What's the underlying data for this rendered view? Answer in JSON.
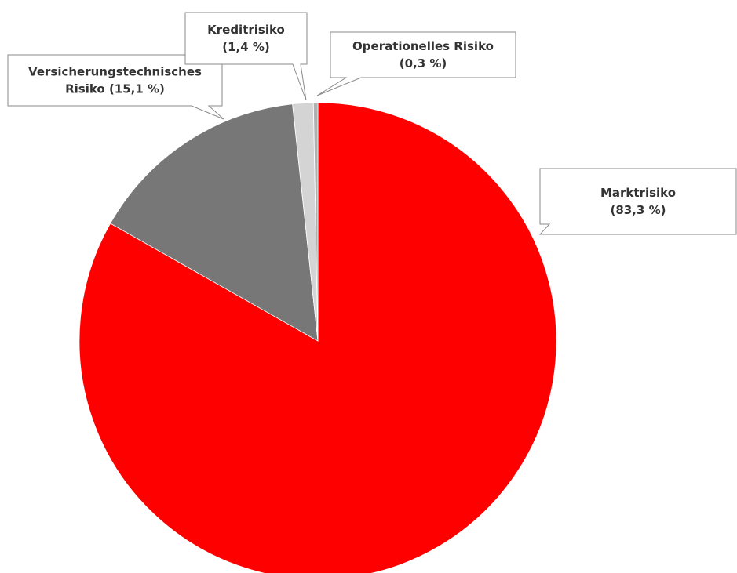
{
  "chart_data": {
    "type": "pie",
    "start_angle_deg": 0,
    "direction": "clockwise",
    "slices": [
      {
        "category": "Marktrisiko",
        "value": 83.3,
        "color": "#ff0000",
        "label_lines": [
          "Marktrisiko",
          "(83,3 %)"
        ]
      },
      {
        "category": "Versicherungstechnisches Risiko",
        "value": 15.1,
        "color": "#777777",
        "label_lines": [
          "Versicherungstechnisches",
          "Risiko (15,1  %)"
        ]
      },
      {
        "category": "Kreditrisiko",
        "value": 1.4,
        "color": "#d4d4d4",
        "label_lines": [
          "Kreditrisiko",
          "(1,4 %)"
        ]
      },
      {
        "category": "Operationelles Risiko",
        "value": 0.3,
        "color": "#b0b0b0",
        "label_lines": [
          "Operationelles Risiko",
          "(0,3 %)"
        ]
      }
    ]
  }
}
